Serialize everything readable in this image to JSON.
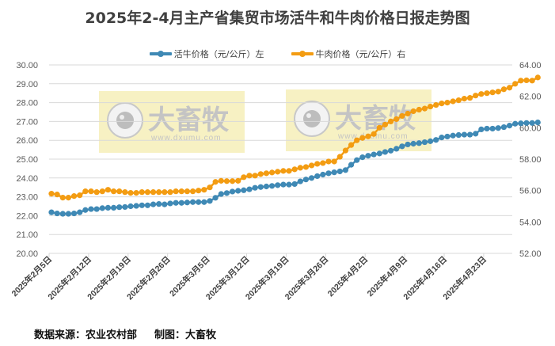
{
  "title": "2025年2-4月主产省集贸市场活牛和牛肉价格日报走势图",
  "legend": [
    {
      "label": "活牛价格（元/公斤）左",
      "color": "#3f89b5"
    },
    {
      "label": "牛肉价格（元/公斤）右",
      "color": "#f39c12"
    }
  ],
  "footer": {
    "source": "数据来源：农业农村部",
    "producer": "制图：大畜牧"
  },
  "watermark": {
    "brand": "大畜牧",
    "url": "www.dxumu.com"
  },
  "chart_data": {
    "type": "line",
    "title": "2025年2-4月主产省集贸市场活牛和牛肉价格日报走势图",
    "xlabel": "",
    "ylabel": "活牛价格（元/公斤）",
    "y2label": "牛肉价格（元/公斤）",
    "ylim": [
      20,
      30
    ],
    "y2lim": [
      52,
      64
    ],
    "yticks": [
      "20.00",
      "21.00",
      "22.00",
      "23.00",
      "24.00",
      "25.00",
      "26.00",
      "27.00",
      "28.00",
      "29.00",
      "30.00"
    ],
    "y2ticks": [
      "52.00",
      "54.00",
      "56.00",
      "58.00",
      "60.00",
      "62.00",
      "64.00"
    ],
    "xtick_labels": [
      "2025年2月5日",
      "2025年2月12日",
      "2025年2月19日",
      "2025年2月26日",
      "2025年3月5日",
      "2025年3月12日",
      "2025年3月19日",
      "2025年3月26日",
      "2025年4月2日",
      "2025年4月9日",
      "2025年4月16日",
      "2025年4月23日"
    ],
    "legend_position": "top",
    "grid": true,
    "x_start": "2025-02-05",
    "x_interval_days": 1,
    "series": [
      {
        "name": "活牛价格（元/公斤）左",
        "axis": "left",
        "color": "#3f89b5",
        "values": [
          22.18,
          22.12,
          22.1,
          22.1,
          22.12,
          22.18,
          22.3,
          22.35,
          22.35,
          22.4,
          22.42,
          22.42,
          22.45,
          22.46,
          22.5,
          22.52,
          22.55,
          22.55,
          22.6,
          22.62,
          22.6,
          22.65,
          22.68,
          22.68,
          22.7,
          22.72,
          22.72,
          22.72,
          22.78,
          22.95,
          23.15,
          23.2,
          23.28,
          23.32,
          23.35,
          23.4,
          23.48,
          23.52,
          23.55,
          23.58,
          23.62,
          23.65,
          23.65,
          23.68,
          23.82,
          23.92,
          24.0,
          24.1,
          24.18,
          24.25,
          24.3,
          24.35,
          24.42,
          24.7,
          24.95,
          25.1,
          25.18,
          25.25,
          25.3,
          25.38,
          25.45,
          25.55,
          25.68,
          25.78,
          25.82,
          25.85,
          25.9,
          25.95,
          26.02,
          26.15,
          26.2,
          26.25,
          26.28,
          26.3,
          26.3,
          26.35,
          26.58,
          26.62,
          26.62,
          26.65,
          26.7,
          26.78,
          26.88,
          26.9,
          26.92,
          26.92,
          26.95
        ]
      },
      {
        "name": "牛肉价格（元/公斤）右",
        "axis": "right",
        "color": "#f39c12",
        "values": [
          55.8,
          55.75,
          55.55,
          55.55,
          55.65,
          55.7,
          55.95,
          55.95,
          55.9,
          55.95,
          56.05,
          55.95,
          55.95,
          55.9,
          55.85,
          55.85,
          55.9,
          55.9,
          55.9,
          55.9,
          55.9,
          55.9,
          55.95,
          55.95,
          55.95,
          55.95,
          56.0,
          56.05,
          56.2,
          56.55,
          56.62,
          56.6,
          56.6,
          56.62,
          56.85,
          56.95,
          56.95,
          57.05,
          57.1,
          57.15,
          57.2,
          57.25,
          57.25,
          57.35,
          57.45,
          57.5,
          57.6,
          57.7,
          57.75,
          57.85,
          57.85,
          58.15,
          58.55,
          58.9,
          59.2,
          59.35,
          59.45,
          59.6,
          60.0,
          60.2,
          60.4,
          60.55,
          60.75,
          60.9,
          61.05,
          61.15,
          61.22,
          61.35,
          61.45,
          61.55,
          61.6,
          61.68,
          61.75,
          61.85,
          61.9,
          62.05,
          62.15,
          62.2,
          62.25,
          62.3,
          62.45,
          62.55,
          62.8,
          63.0,
          63.02,
          63.0,
          63.2
        ]
      }
    ]
  }
}
